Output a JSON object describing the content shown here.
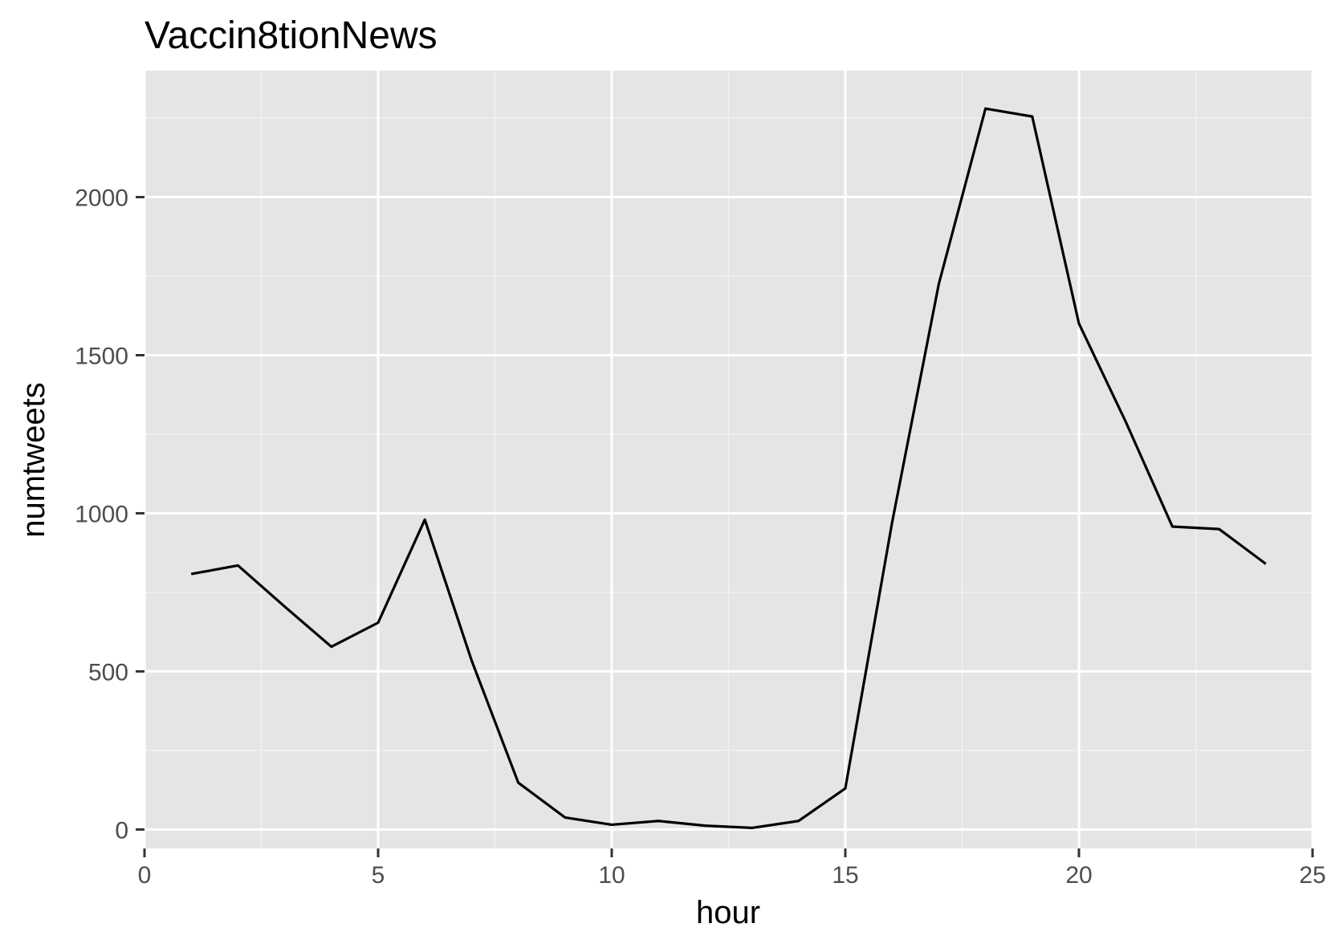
{
  "chart_data": {
    "type": "line",
    "title": "Vaccin8tionNews",
    "xlabel": "hour",
    "ylabel": "numtweets",
    "xlim": [
      0,
      25
    ],
    "ylim": [
      -60,
      2400
    ],
    "x_ticks": [
      0,
      5,
      10,
      15,
      20,
      25
    ],
    "x_tick_labels": [
      "0",
      "5",
      "10",
      "15",
      "20",
      "25"
    ],
    "x_minor_ticks": [
      2.5,
      7.5,
      12.5,
      17.5,
      22.5
    ],
    "y_ticks": [
      0,
      500,
      1000,
      1500,
      2000
    ],
    "y_tick_labels": [
      "0",
      "500",
      "1000",
      "1500",
      "2000"
    ],
    "y_minor_ticks": [
      250,
      750,
      1250,
      1750,
      2250
    ],
    "grid": true,
    "legend": "none",
    "series": [
      {
        "x": [
          1,
          2,
          3,
          4,
          5,
          6,
          7,
          8,
          9,
          10,
          11,
          12,
          13,
          14,
          15,
          16,
          17,
          18,
          19,
          20,
          21,
          22,
          23,
          24
        ],
        "values": [
          808,
          835,
          705,
          578,
          654,
          980,
          535,
          148,
          38,
          15,
          27,
          12,
          5,
          27,
          130,
          970,
          1725,
          2280,
          2255,
          1600,
          1290,
          958,
          950,
          840
        ]
      }
    ],
    "colors": {
      "panel_background": "#e5e5e5",
      "grid_major": "#ffffff",
      "grid_minor": "#f2f2f2",
      "line": "#000000",
      "tick_mark": "#333333",
      "tick_label": "#4d4d4d"
    }
  }
}
